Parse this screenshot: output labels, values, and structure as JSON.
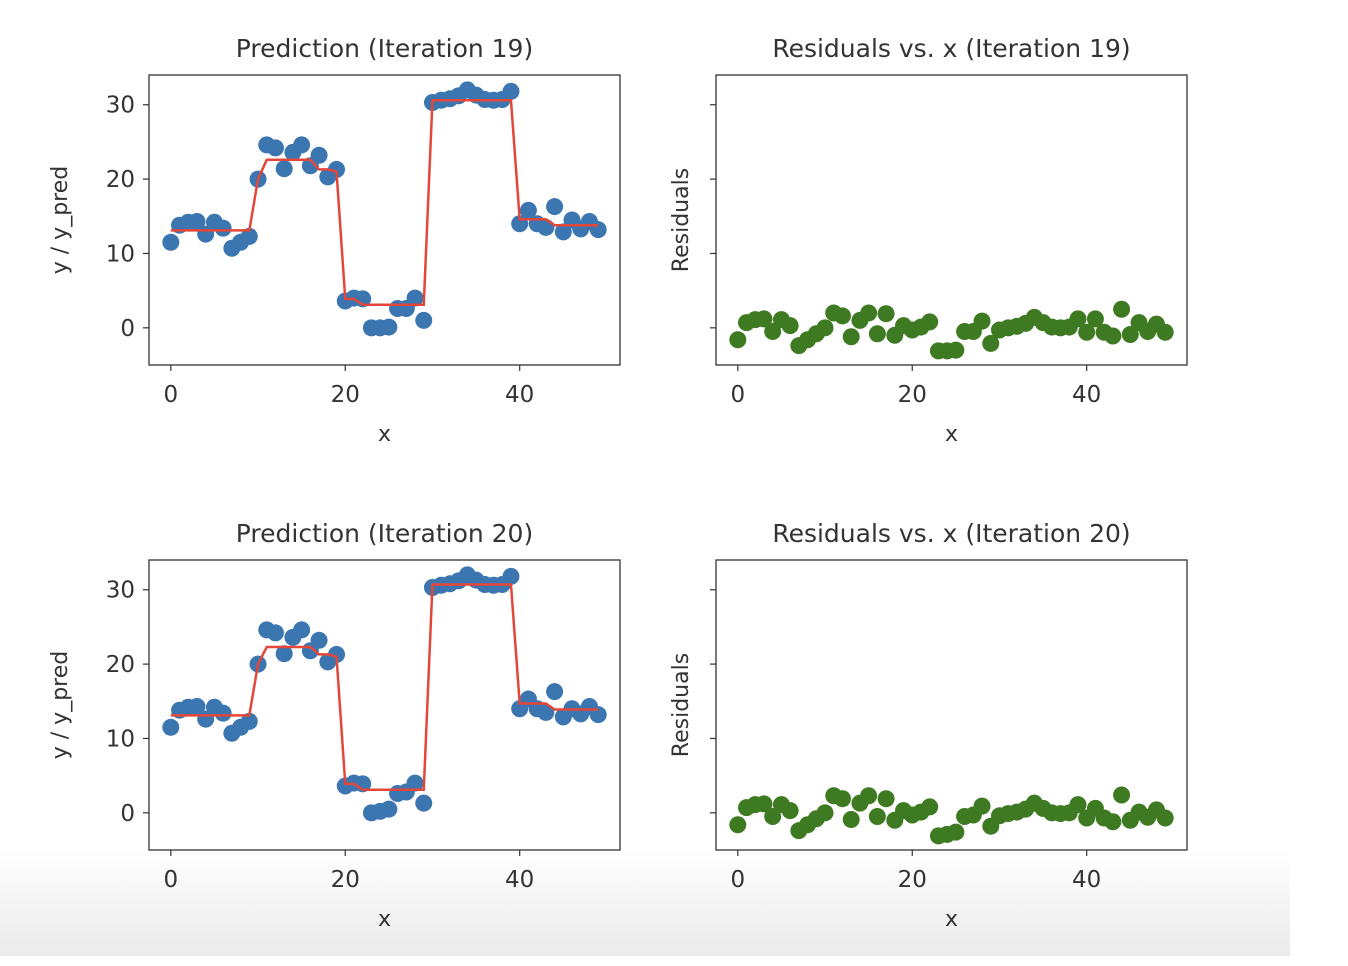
{
  "colors": {
    "observed": "#3b76b0",
    "prediction": "#e4473a",
    "residual": "#3e7a22",
    "axes": "#333333"
  },
  "chart_data": [
    {
      "type": "scatter+line",
      "title": "Prediction (Iteration 19)",
      "xlabel": "x",
      "ylabel": "y / y_pred",
      "xlim": [
        -2.5,
        51.5
      ],
      "ylim": [
        -5,
        34
      ],
      "xticks": [
        0,
        20,
        40
      ],
      "yticks": [
        0,
        10,
        20,
        30
      ],
      "x": [
        0,
        1,
        2,
        3,
        4,
        5,
        6,
        7,
        8,
        9,
        10,
        11,
        12,
        13,
        14,
        15,
        16,
        17,
        18,
        19,
        20,
        21,
        22,
        23,
        24,
        25,
        26,
        27,
        28,
        29,
        30,
        31,
        32,
        33,
        34,
        35,
        36,
        37,
        38,
        39,
        40,
        41,
        42,
        43,
        44,
        45,
        46,
        47,
        48,
        49
      ],
      "y": [
        11.5,
        13.8,
        14.2,
        14.3,
        12.6,
        14.2,
        13.4,
        10.7,
        11.5,
        12.3,
        20.0,
        24.6,
        24.2,
        21.4,
        23.6,
        24.6,
        21.8,
        23.2,
        20.3,
        21.3,
        3.6,
        4.0,
        3.9,
        0.0,
        0.0,
        0.1,
        2.6,
        2.6,
        4.0,
        1.0,
        30.3,
        30.6,
        30.8,
        31.2,
        32.0,
        31.3,
        30.7,
        30.6,
        30.7,
        31.8,
        14.0,
        15.8,
        14.0,
        13.5,
        16.3,
        12.9,
        14.5,
        13.3,
        14.3,
        13.2
      ],
      "y_pred": [
        13.1,
        13.1,
        13.1,
        13.1,
        13.1,
        13.1,
        13.1,
        13.1,
        13.1,
        13.1,
        20.0,
        22.6,
        22.6,
        22.6,
        22.6,
        22.6,
        22.6,
        21.3,
        21.3,
        21.0,
        3.9,
        3.9,
        3.1,
        3.1,
        3.1,
        3.1,
        3.1,
        3.1,
        3.1,
        3.1,
        30.6,
        30.6,
        30.6,
        30.6,
        30.6,
        30.6,
        30.6,
        30.6,
        30.6,
        30.6,
        14.6,
        14.6,
        14.6,
        14.6,
        13.8,
        13.8,
        13.8,
        13.8,
        13.8,
        13.8
      ]
    },
    {
      "type": "scatter",
      "title": "Residuals vs. x (Iteration 19)",
      "xlabel": "x",
      "ylabel": "Residuals",
      "xlim": [
        -2.5,
        51.5
      ],
      "ylim": [
        -5,
        34
      ],
      "xticks": [
        0,
        20,
        40
      ],
      "yticks": [
        0,
        10,
        20,
        30
      ],
      "ytick_labels": false,
      "x": [
        0,
        1,
        2,
        3,
        4,
        5,
        6,
        7,
        8,
        9,
        10,
        11,
        12,
        13,
        14,
        15,
        16,
        17,
        18,
        19,
        20,
        21,
        22,
        23,
        24,
        25,
        26,
        27,
        28,
        29,
        30,
        31,
        32,
        33,
        34,
        35,
        36,
        37,
        38,
        39,
        40,
        41,
        42,
        43,
        44,
        45,
        46,
        47,
        48,
        49
      ],
      "residuals": [
        -1.6,
        0.7,
        1.1,
        1.2,
        -0.5,
        1.1,
        0.3,
        -2.4,
        -1.6,
        -0.8,
        0.0,
        2.0,
        1.6,
        -1.2,
        1.0,
        2.0,
        -0.8,
        1.9,
        -1.0,
        0.3,
        -0.3,
        0.1,
        0.8,
        -3.1,
        -3.1,
        -3.0,
        -0.5,
        -0.5,
        0.9,
        -2.1,
        -0.3,
        0.0,
        0.2,
        0.6,
        1.4,
        0.7,
        0.1,
        0.0,
        0.1,
        1.2,
        -0.6,
        1.2,
        -0.6,
        -1.1,
        2.5,
        -0.9,
        0.7,
        -0.5,
        0.5,
        -0.6
      ]
    },
    {
      "type": "scatter+line",
      "title": "Prediction (Iteration 20)",
      "xlabel": "x",
      "ylabel": "y / y_pred",
      "xlim": [
        -2.5,
        51.5
      ],
      "ylim": [
        -5,
        34
      ],
      "xticks": [
        0,
        20,
        40
      ],
      "yticks": [
        0,
        10,
        20,
        30
      ],
      "x": [
        0,
        1,
        2,
        3,
        4,
        5,
        6,
        7,
        8,
        9,
        10,
        11,
        12,
        13,
        14,
        15,
        16,
        17,
        18,
        19,
        20,
        21,
        22,
        23,
        24,
        25,
        26,
        27,
        28,
        29,
        30,
        31,
        32,
        33,
        34,
        35,
        36,
        37,
        38,
        39,
        40,
        41,
        42,
        43,
        44,
        45,
        46,
        47,
        48,
        49
      ],
      "y": [
        11.5,
        13.8,
        14.2,
        14.3,
        12.6,
        14.2,
        13.4,
        10.7,
        11.5,
        12.3,
        20.0,
        24.6,
        24.2,
        21.4,
        23.6,
        24.6,
        21.8,
        23.2,
        20.3,
        21.3,
        3.6,
        4.0,
        3.9,
        0.0,
        0.2,
        0.5,
        2.6,
        2.8,
        4.0,
        1.3,
        30.3,
        30.6,
        30.8,
        31.2,
        32.0,
        31.3,
        30.7,
        30.6,
        30.7,
        31.8,
        14.0,
        15.3,
        14.0,
        13.5,
        16.3,
        12.9,
        14.0,
        13.3,
        14.3,
        13.2
      ],
      "y_pred": [
        13.1,
        13.1,
        13.1,
        13.1,
        13.1,
        13.1,
        13.1,
        13.1,
        13.1,
        13.1,
        20.0,
        22.3,
        22.3,
        22.3,
        22.3,
        22.3,
        22.3,
        21.3,
        21.3,
        21.0,
        3.9,
        3.9,
        3.1,
        3.1,
        3.1,
        3.1,
        3.1,
        3.1,
        3.1,
        3.1,
        30.7,
        30.7,
        30.7,
        30.7,
        30.7,
        30.7,
        30.7,
        30.7,
        30.7,
        30.7,
        14.7,
        14.7,
        14.7,
        14.7,
        13.9,
        13.9,
        13.9,
        13.9,
        13.9,
        13.9
      ]
    },
    {
      "type": "scatter",
      "title": "Residuals vs. x (Iteration 20)",
      "xlabel": "x",
      "ylabel": "Residuals",
      "xlim": [
        -2.5,
        51.5
      ],
      "ylim": [
        -5,
        34
      ],
      "xticks": [
        0,
        20,
        40
      ],
      "yticks": [
        0,
        10,
        20,
        30
      ],
      "ytick_labels": false,
      "x": [
        0,
        1,
        2,
        3,
        4,
        5,
        6,
        7,
        8,
        9,
        10,
        11,
        12,
        13,
        14,
        15,
        16,
        17,
        18,
        19,
        20,
        21,
        22,
        23,
        24,
        25,
        26,
        27,
        28,
        29,
        30,
        31,
        32,
        33,
        34,
        35,
        36,
        37,
        38,
        39,
        40,
        41,
        42,
        43,
        44,
        45,
        46,
        47,
        48,
        49
      ],
      "residuals": [
        -1.6,
        0.7,
        1.1,
        1.2,
        -0.5,
        1.1,
        0.3,
        -2.4,
        -1.6,
        -0.8,
        0.0,
        2.3,
        1.9,
        -0.9,
        1.3,
        2.3,
        -0.5,
        1.9,
        -1.0,
        0.3,
        -0.3,
        0.1,
        0.8,
        -3.1,
        -2.9,
        -2.6,
        -0.5,
        -0.3,
        0.9,
        -1.8,
        -0.4,
        -0.1,
        0.1,
        0.5,
        1.3,
        0.6,
        0.0,
        -0.1,
        0.0,
        1.1,
        -0.7,
        0.6,
        -0.7,
        -1.2,
        2.4,
        -1.0,
        0.1,
        -0.6,
        0.4,
        -0.7
      ]
    }
  ]
}
